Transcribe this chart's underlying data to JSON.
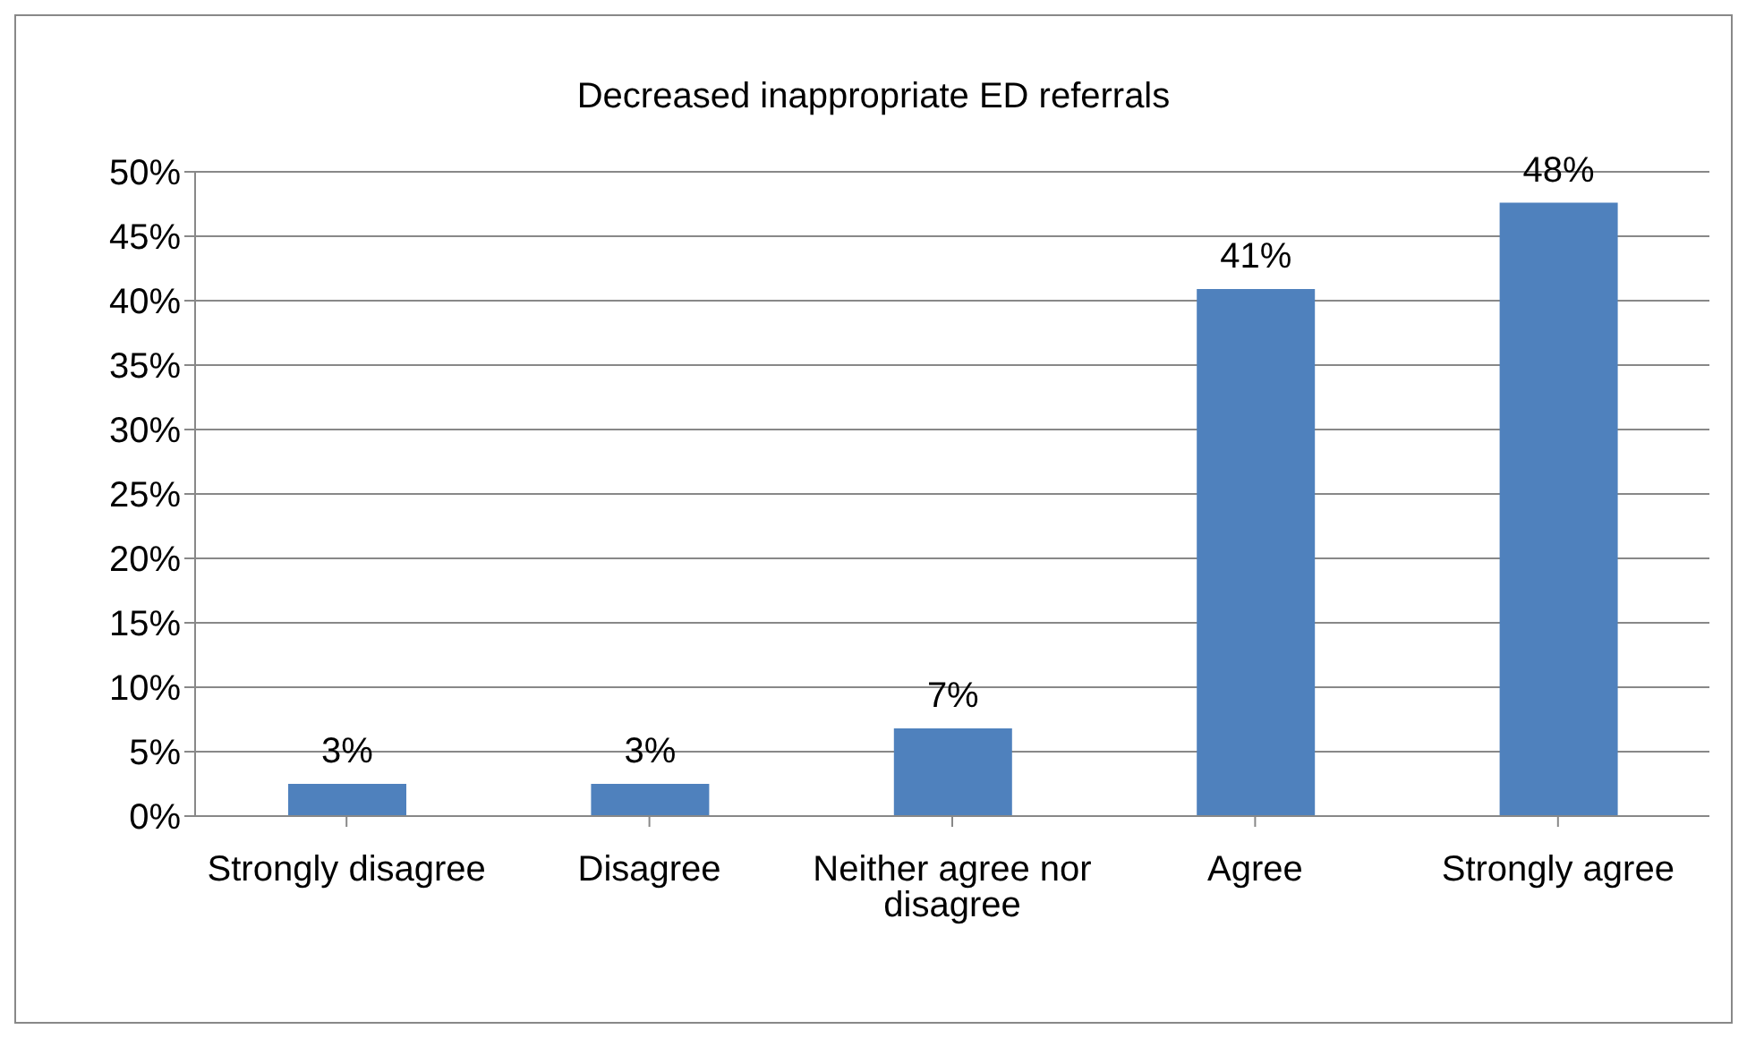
{
  "chart_data": {
    "type": "bar",
    "title": "Decreased inappropriate ED referrals",
    "categories": [
      "Strongly disagree",
      "Disagree",
      "Neither agree nor disagree",
      "Agree",
      "Strongly agree"
    ],
    "values": [
      2.5,
      2.5,
      6.8,
      40.9,
      47.6
    ],
    "value_labels": [
      "3%",
      "3%",
      "7%",
      "41%",
      "48%"
    ],
    "color": "#4f81bd",
    "ylim": [
      0,
      50
    ],
    "yticks": [
      {
        "value": 0,
        "label": "0%"
      },
      {
        "value": 5,
        "label": "5%"
      },
      {
        "value": 10,
        "label": "10%"
      },
      {
        "value": 15,
        "label": "15%"
      },
      {
        "value": 20,
        "label": "20%"
      },
      {
        "value": 25,
        "label": "25%"
      },
      {
        "value": 30,
        "label": "30%"
      },
      {
        "value": 35,
        "label": "35%"
      },
      {
        "value": 40,
        "label": "40%"
      },
      {
        "value": 45,
        "label": "45%"
      },
      {
        "value": 50,
        "label": "50%"
      }
    ],
    "grid": "y"
  }
}
